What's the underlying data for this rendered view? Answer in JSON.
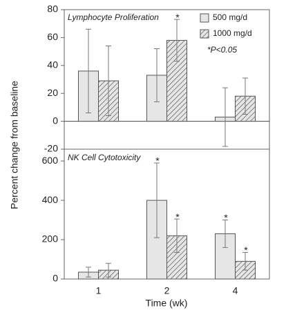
{
  "chart_data": [
    {
      "type": "bar",
      "title": "Lymphocyte  Proliferation",
      "ylabel": "Percent change from baseline",
      "annotation": "*P<0.05",
      "series": [
        {
          "name": "500 mg/d",
          "color": "#e6e6e6",
          "hatch": false,
          "values": [
            36,
            33,
            3
          ],
          "errors": [
            30,
            19,
            21
          ],
          "markers": [
            null,
            null,
            null
          ]
        },
        {
          "name": "1000 mg/d",
          "color": "#e6e6e6",
          "hatch": true,
          "values": [
            29,
            58,
            18
          ],
          "errors": [
            25,
            15,
            13
          ],
          "markers": [
            null,
            "*",
            null
          ]
        }
      ],
      "ylim": [
        -20,
        80
      ],
      "yticks": [
        -20,
        0,
        20,
        40,
        60,
        80
      ]
    },
    {
      "type": "bar",
      "title": "NK Cell  Cytotoxicity",
      "xlabel": "Time (wk)",
      "categories": [
        "1",
        "2",
        "4"
      ],
      "series": [
        {
          "color": "#e6e6e6",
          "hatch": false,
          "values": [
            35,
            400,
            230
          ],
          "errors": [
            25,
            190,
            70
          ],
          "markers": [
            null,
            "*",
            "*"
          ]
        },
        {
          "color": "#e6e6e6",
          "hatch": true,
          "values": [
            45,
            220,
            90
          ],
          "errors": [
            35,
            85,
            45
          ],
          "markers": [
            null,
            "*",
            "*"
          ]
        }
      ],
      "ylim": [
        0,
        660
      ],
      "yticks": [
        0,
        200,
        400,
        600
      ]
    }
  ]
}
